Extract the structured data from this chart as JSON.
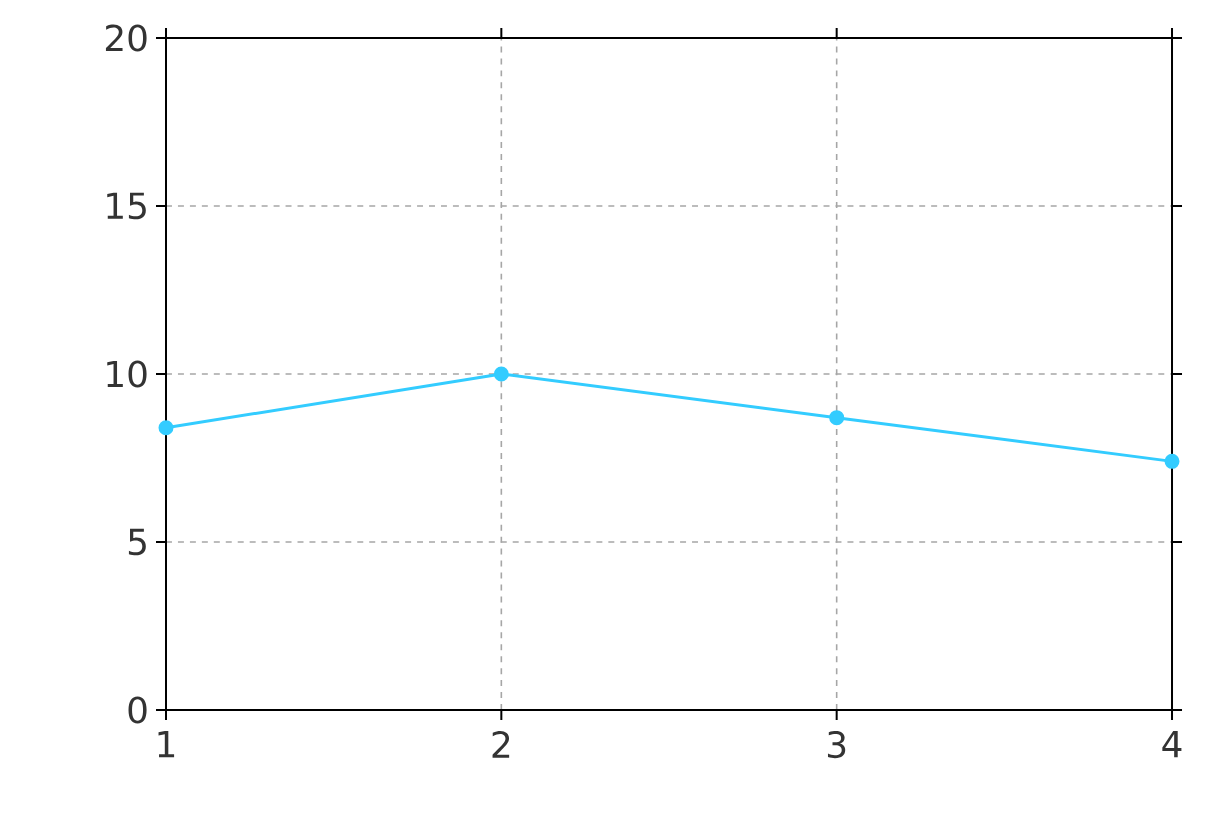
{
  "chart_data": {
    "type": "line",
    "x": [
      1,
      2,
      3,
      4
    ],
    "series": [
      {
        "color": "#33ccff",
        "values": [
          8.4,
          10,
          8.7,
          7.4
        ]
      }
    ],
    "xlim": [
      1,
      4
    ],
    "ylim": [
      0,
      20
    ],
    "xticks": [
      1,
      2,
      3,
      4
    ],
    "yticks": [
      0,
      5,
      10,
      15,
      20
    ],
    "grid": true,
    "marker": "circle",
    "line_style": "solid"
  }
}
